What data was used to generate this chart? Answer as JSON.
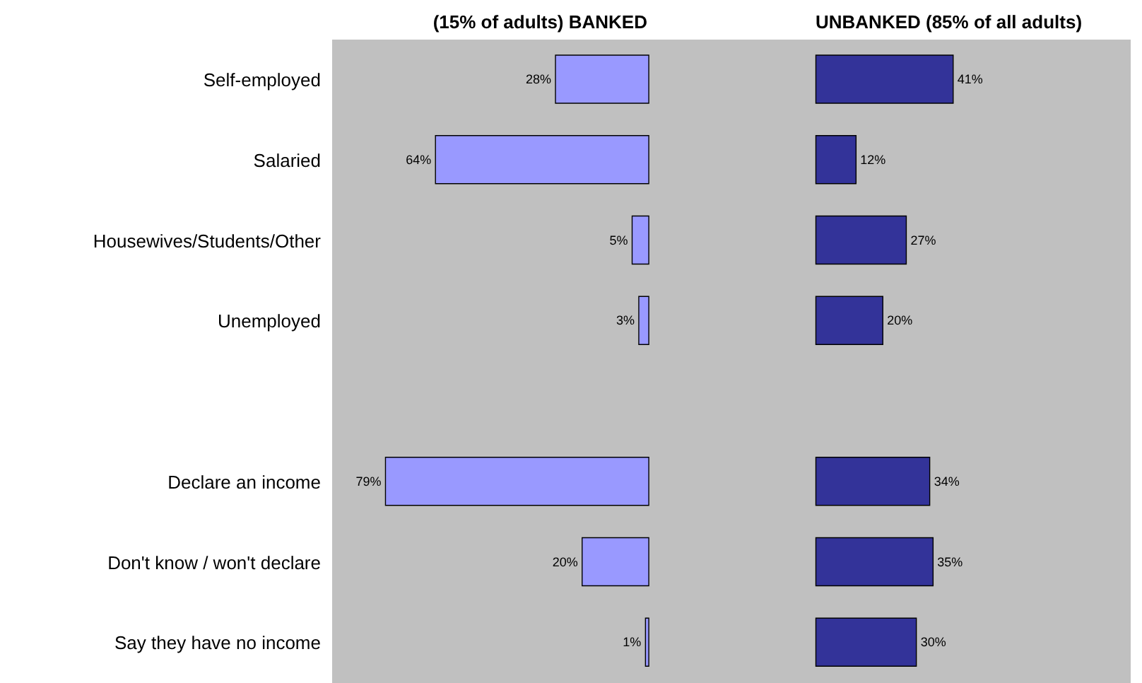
{
  "chart_data": [
    {
      "type": "bar",
      "orientation": "horizontal",
      "title": "(15% of adults) BANKED",
      "categories": [
        "Self-employed",
        "Salaried",
        "Housewives/Students/Other",
        "Unemployed",
        null,
        "Declare an income",
        "Don't know / won't declare",
        "Say they have no income"
      ],
      "values": [
        28,
        64,
        5,
        3,
        null,
        79,
        20,
        1
      ],
      "value_labels": [
        "28%",
        "64%",
        "5%",
        "3%",
        null,
        "79%",
        "20%",
        "1%"
      ],
      "color": "#9999ff",
      "xlim": [
        95,
        -25
      ],
      "tick_labels": "y"
    },
    {
      "type": "bar",
      "orientation": "horizontal",
      "title": "UNBANKED (85% of all adults)",
      "categories": [
        null,
        null,
        null,
        null,
        null,
        null,
        null,
        null
      ],
      "values": [
        41,
        12,
        27,
        20,
        null,
        34,
        35,
        30
      ],
      "value_labels": [
        "41%",
        "12%",
        "27%",
        "20%",
        null,
        "34%",
        "35%",
        "30%"
      ],
      "color": "#333399",
      "xlim": [
        -25,
        94
      ],
      "tick_labels": false
    }
  ]
}
